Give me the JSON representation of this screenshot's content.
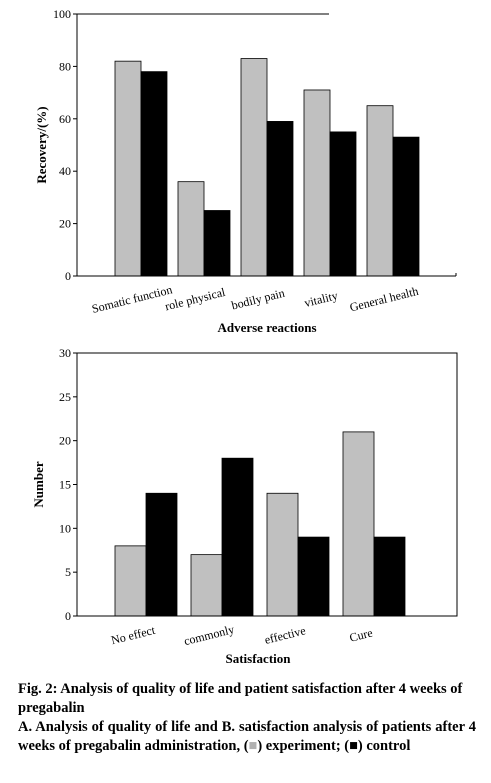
{
  "chart_data": [
    {
      "type": "bar",
      "categories": [
        "Somatic function",
        "role physical",
        "bodily pain",
        "vitality",
        "General health"
      ],
      "series": [
        {
          "values": [
            82,
            36,
            83,
            71,
            65
          ],
          "color": "#c0c0c0"
        },
        {
          "values": [
            78,
            25,
            59,
            55,
            53
          ],
          "color": "#000000"
        }
      ],
      "title": "",
      "xlabel": "Adverse reactions",
      "ylabel": "Recovery/(%)",
      "ylim": [
        0,
        100
      ],
      "yticks": [
        "0",
        "20",
        "40",
        "60",
        "80",
        "100"
      ],
      "grid": false
    },
    {
      "type": "bar",
      "categories": [
        "No effect",
        "commonly",
        "effective",
        "Cure"
      ],
      "series": [
        {
          "values": [
            8,
            7,
            14,
            21
          ],
          "color": "#c0c0c0"
        },
        {
          "values": [
            14,
            18,
            9,
            9
          ],
          "color": "#000000"
        }
      ],
      "title": "",
      "xlabel": "Satisfaction",
      "ylabel": "Number",
      "ylim": [
        0,
        30
      ],
      "yticks": [
        "0",
        "5",
        "10",
        "15",
        "20",
        "25",
        "30"
      ],
      "grid": false
    }
  ],
  "caption": {
    "title": "Fig. 2: Analysis of quality of life and patient satisfaction after 4 weeks of pregabalin",
    "body_pre": "A. Analysis of quality of life and B. satisfaction analysis of patients after 4 weeks of pregabalin administration, (",
    "legend_mark_1": "■",
    "body_mid": ") experiment; (",
    "legend_mark_2": "■",
    "body_post": ") control",
    "mark_color_1": "#b0b0b0",
    "mark_color_2": "#000000"
  }
}
